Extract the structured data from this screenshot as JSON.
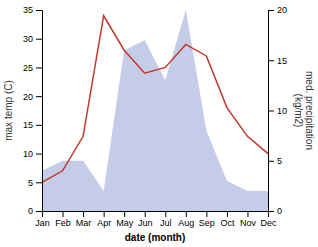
{
  "chart_data": {
    "type": "line",
    "categories": [
      "Jan",
      "Feb",
      "Mar",
      "Apr",
      "May",
      "Jun",
      "Jul",
      "Aug",
      "Sep",
      "Oct",
      "Nov",
      "Dec"
    ],
    "series": [
      {
        "type": "area",
        "color": "#c5cce8",
        "axis": "y2",
        "values": [
          4,
          5,
          5,
          2,
          16,
          17,
          13,
          20,
          8,
          3,
          2,
          2
        ]
      },
      {
        "type": "line",
        "color": "#c0392b",
        "values": [
          5,
          7,
          13,
          34,
          28,
          24,
          25,
          29,
          27,
          18,
          13,
          10
        ]
      }
    ],
    "xlabel": "date (month)",
    "ylabel": "max temp (C)",
    "y2label": "med. precipitation\n(kg/m2)",
    "ylim": [
      0,
      35
    ],
    "yticks": [
      0,
      5,
      10,
      15,
      20,
      25,
      30,
      35
    ],
    "y2lim": [
      0,
      20
    ],
    "y2ticks": [
      0,
      5,
      10,
      15,
      20
    ],
    "grid": false
  }
}
